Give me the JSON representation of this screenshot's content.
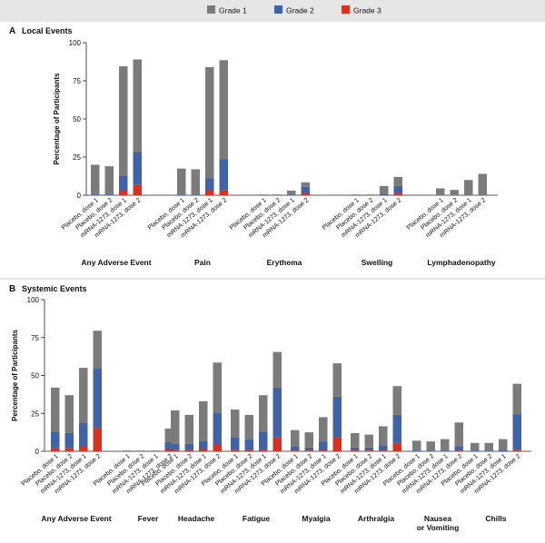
{
  "legend": {
    "items": [
      {
        "label": "Grade 1",
        "color": "#7b7b7b"
      },
      {
        "label": "Grade 2",
        "color": "#3f63a8"
      },
      {
        "label": "Grade 3",
        "color": "#d9301f"
      }
    ]
  },
  "chart_data": [
    {
      "type": "bar",
      "stacked": true,
      "panel_letter": "A",
      "title": "Local Events",
      "ylabel": "Percentage of Participants",
      "ylim": [
        0,
        100
      ],
      "yticks": [
        0,
        25,
        50,
        75,
        100
      ],
      "legend_placement": "top",
      "series_colors": {
        "Grade 1": "#7b7b7b",
        "Grade 2": "#3f63a8",
        "Grade 3": "#d9301f"
      },
      "bar_labels": [
        "Placebo, dose 1",
        "Placebo, dose 2",
        "mRNA-1273, dose 1",
        "mRNA-1273, dose 2"
      ],
      "groups": [
        {
          "name": "Any Adverse Event",
          "bars": [
            {
              "label": "Placebo, dose 1",
              "grade1": 19.5,
              "grade2": 0.5,
              "grade3": 0
            },
            {
              "label": "Placebo, dose 2",
              "grade1": 18.5,
              "grade2": 0.5,
              "grade3": 0
            },
            {
              "label": "mRNA-1273, dose 1",
              "grade1": 72,
              "grade2": 9.5,
              "grade3": 3
            },
            {
              "label": "mRNA-1273, dose 2",
              "grade1": 60.5,
              "grade2": 21.5,
              "grade3": 7
            }
          ]
        },
        {
          "name": "Pain",
          "bars": [
            {
              "label": "Placebo, dose 1",
              "grade1": 17,
              "grade2": 0.5,
              "grade3": 0
            },
            {
              "label": "Placebo, dose 2",
              "grade1": 16.5,
              "grade2": 0.5,
              "grade3": 0
            },
            {
              "label": "mRNA-1273, dose 1",
              "grade1": 73,
              "grade2": 8,
              "grade3": 3
            },
            {
              "label": "mRNA-1273, dose 2",
              "grade1": 65,
              "grade2": 20,
              "grade3": 3.5
            }
          ]
        },
        {
          "name": "Erythema",
          "bars": [
            {
              "label": "Placebo, dose 1",
              "grade1": 0.5,
              "grade2": 0,
              "grade3": 0
            },
            {
              "label": "Placebo, dose 2",
              "grade1": 0.5,
              "grade2": 0,
              "grade3": 0
            },
            {
              "label": "mRNA-1273, dose 1",
              "grade1": 2.5,
              "grade2": 0.5,
              "grade3": 0
            },
            {
              "label": "mRNA-1273, dose 2",
              "grade1": 3,
              "grade2": 4,
              "grade3": 1.5
            }
          ]
        },
        {
          "name": "Swelling",
          "bars": [
            {
              "label": "Placebo, dose 1",
              "grade1": 0.5,
              "grade2": 0,
              "grade3": 0
            },
            {
              "label": "Placebo, dose 2",
              "grade1": 0.5,
              "grade2": 0,
              "grade3": 0
            },
            {
              "label": "mRNA-1273, dose 1",
              "grade1": 5,
              "grade2": 1,
              "grade3": 0
            },
            {
              "label": "mRNA-1273, dose 2",
              "grade1": 6,
              "grade2": 4.5,
              "grade3": 1.5
            }
          ]
        },
        {
          "name": "Lymphadenopathy",
          "bars": [
            {
              "label": "Placebo, dose 1",
              "grade1": 4.5,
              "grade2": 0,
              "grade3": 0
            },
            {
              "label": "Placebo, dose 2",
              "grade1": 3.5,
              "grade2": 0,
              "grade3": 0
            },
            {
              "label": "mRNA-1273, dose 1",
              "grade1": 10,
              "grade2": 0,
              "grade3": 0
            },
            {
              "label": "mRNA-1273, dose 2",
              "grade1": 14,
              "grade2": 0,
              "grade3": 0
            }
          ]
        }
      ]
    },
    {
      "type": "bar",
      "stacked": true,
      "panel_letter": "B",
      "title": "Systemic Events",
      "ylabel": "Percentage of Participants",
      "ylim": [
        0,
        100
      ],
      "yticks": [
        0,
        25,
        50,
        75,
        100
      ],
      "series_colors": {
        "Grade 1": "#7b7b7b",
        "Grade 2": "#3f63a8",
        "Grade 3": "#d9301f"
      },
      "bar_labels": [
        "Placebo, dose 1",
        "Placebo, dose 2",
        "mRNA-1273, dose 1",
        "mRNA-1273, dose 2"
      ],
      "groups": [
        {
          "name": "Any Adverse Event",
          "bars": [
            {
              "label": "Placebo, dose 1",
              "grade1": 29,
              "grade2": 11,
              "grade3": 2
            },
            {
              "label": "Placebo, dose 2",
              "grade1": 25,
              "grade2": 10,
              "grade3": 2
            },
            {
              "label": "mRNA-1273, dose 1",
              "grade1": 36,
              "grade2": 16,
              "grade3": 3
            },
            {
              "label": "mRNA-1273, dose 2",
              "grade1": 25,
              "grade2": 39,
              "grade3": 15.5
            }
          ]
        },
        {
          "name": "Fever",
          "bars": [
            {
              "label": "Placebo, dose 1",
              "grade1": 0.5,
              "grade2": 0,
              "grade3": 0
            },
            {
              "label": "Placebo, dose 2",
              "grade1": 0.5,
              "grade2": 0,
              "grade3": 0
            },
            {
              "label": "mRNA-1273, dose 1",
              "grade1": 0.5,
              "grade2": 0,
              "grade3": 0
            },
            {
              "label": "mRNA-1273, dose 2",
              "grade1": 9,
              "grade2": 4.5,
              "grade3": 1.5
            }
          ]
        },
        {
          "name": "Headache",
          "bars": [
            {
              "label": "Placebo, dose 1",
              "grade1": 22,
              "grade2": 4,
              "grade3": 1
            },
            {
              "label": "Placebo, dose 2",
              "grade1": 19,
              "grade2": 4,
              "grade3": 1
            },
            {
              "label": "mRNA-1273, dose 1",
              "grade1": 26,
              "grade2": 5.5,
              "grade3": 1.5
            },
            {
              "label": "mRNA-1273, dose 2",
              "grade1": 33,
              "grade2": 21,
              "grade3": 4.5
            }
          ]
        },
        {
          "name": "Fatigue",
          "bars": [
            {
              "label": "Placebo, dose 1",
              "grade1": 18.5,
              "grade2": 8,
              "grade3": 1
            },
            {
              "label": "Placebo, dose 2",
              "grade1": 16,
              "grade2": 7,
              "grade3": 1
            },
            {
              "label": "mRNA-1273, dose 1",
              "grade1": 24,
              "grade2": 12,
              "grade3": 1
            },
            {
              "label": "mRNA-1273, dose 2",
              "grade1": 23.5,
              "grade2": 32.5,
              "grade3": 9.5
            }
          ]
        },
        {
          "name": "Myalgia",
          "bars": [
            {
              "label": "Placebo, dose 1",
              "grade1": 11,
              "grade2": 2.5,
              "grade3": 0.5
            },
            {
              "label": "Placebo, dose 2",
              "grade1": 10,
              "grade2": 2,
              "grade3": 0.5
            },
            {
              "label": "mRNA-1273, dose 1",
              "grade1": 16,
              "grade2": 6,
              "grade3": 0.5
            },
            {
              "label": "mRNA-1273, dose 2",
              "grade1": 22,
              "grade2": 27,
              "grade3": 9
            }
          ]
        },
        {
          "name": "Arthralgia",
          "bars": [
            {
              "label": "Placebo, dose 1",
              "grade1": 9.5,
              "grade2": 2,
              "grade3": 0.5
            },
            {
              "label": "Placebo, dose 2",
              "grade1": 8.5,
              "grade2": 2,
              "grade3": 0.5
            },
            {
              "label": "mRNA-1273, dose 1",
              "grade1": 12.5,
              "grade2": 3.5,
              "grade3": 0.5
            },
            {
              "label": "mRNA-1273, dose 2",
              "grade1": 19,
              "grade2": 18.5,
              "grade3": 5.5
            }
          ]
        },
        {
          "name": "Nausea\nor Vomiting",
          "bars": [
            {
              "label": "Placebo, dose 1",
              "grade1": 6.5,
              "grade2": 0.5,
              "grade3": 0
            },
            {
              "label": "Placebo, dose 2",
              "grade1": 6,
              "grade2": 0.5,
              "grade3": 0
            },
            {
              "label": "mRNA-1273, dose 1",
              "grade1": 7.5,
              "grade2": 0.5,
              "grade3": 0
            },
            {
              "label": "mRNA-1273, dose 2",
              "grade1": 16,
              "grade2": 2.5,
              "grade3": 0.5
            }
          ]
        },
        {
          "name": "Chills",
          "bars": [
            {
              "label": "Placebo, dose 1",
              "grade1": 5,
              "grade2": 0.5,
              "grade3": 0
            },
            {
              "label": "Placebo, dose 2",
              "grade1": 5,
              "grade2": 0.5,
              "grade3": 0
            },
            {
              "label": "mRNA-1273, dose 1",
              "grade1": 7,
              "grade2": 1,
              "grade3": 0
            },
            {
              "label": "mRNA-1273, dose 2",
              "grade1": 20,
              "grade2": 23.5,
              "grade3": 1
            }
          ]
        }
      ]
    }
  ]
}
